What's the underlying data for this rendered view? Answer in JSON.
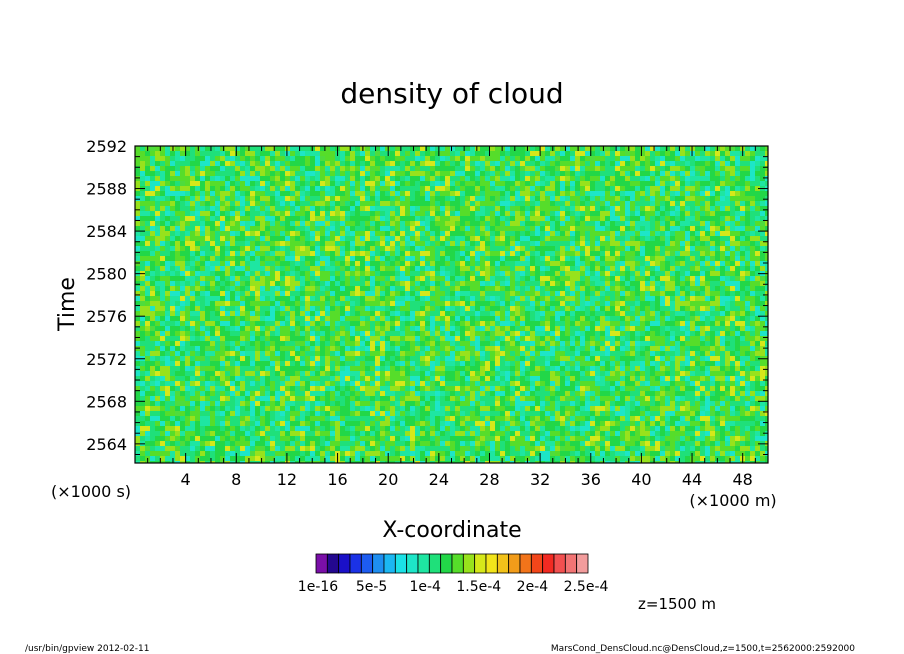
{
  "chart_data": {
    "type": "heatmap",
    "title": "density of cloud",
    "xlabel": "X-coordinate",
    "ylabel": "Time",
    "x_unit_label": "(×1000 m)",
    "y_unit_label": "(×1000 s)",
    "xlim": [
      0,
      50
    ],
    "ylim": [
      2562.2,
      2592
    ],
    "x_ticks": [
      4,
      8,
      12,
      16,
      20,
      24,
      28,
      32,
      36,
      40,
      44,
      48
    ],
    "y_ticks": [
      2564,
      2568,
      2572,
      2576,
      2580,
      2584,
      2588,
      2592
    ],
    "x_tick_labels": [
      "4",
      "8",
      "12",
      "16",
      "20",
      "24",
      "28",
      "32",
      "36",
      "40",
      "44",
      "48"
    ],
    "y_tick_labels": [
      "2564",
      "2568",
      "2572",
      "2576",
      "2580",
      "2584",
      "2588",
      "2592"
    ],
    "colorbar": {
      "colors": [
        "#7a0fa8",
        "#23088f",
        "#1a10c8",
        "#1b32e6",
        "#1d5cf0",
        "#1e8ef0",
        "#1bb7f2",
        "#1be1e6",
        "#1de6c8",
        "#1ee6a2",
        "#1fe07a",
        "#22d748",
        "#56dd2a",
        "#98e21c",
        "#d6e81a",
        "#f2e41a",
        "#f2c21a",
        "#f29c1a",
        "#f2741a",
        "#f2461a",
        "#f22a22",
        "#f25050",
        "#f27474",
        "#f29c9c"
      ],
      "tick_labels": [
        "1e-16",
        "5e-5",
        "1e-4",
        "1.5e-4",
        "2e-4",
        "2.5e-4"
      ]
    },
    "annotation": "z=1500 m"
  },
  "footer": {
    "left": "/usr/bin/gpview   2012-02-11",
    "right": "MarsCond_DensCloud.nc@DensCloud,z=1500,t=2562000:2592000"
  }
}
